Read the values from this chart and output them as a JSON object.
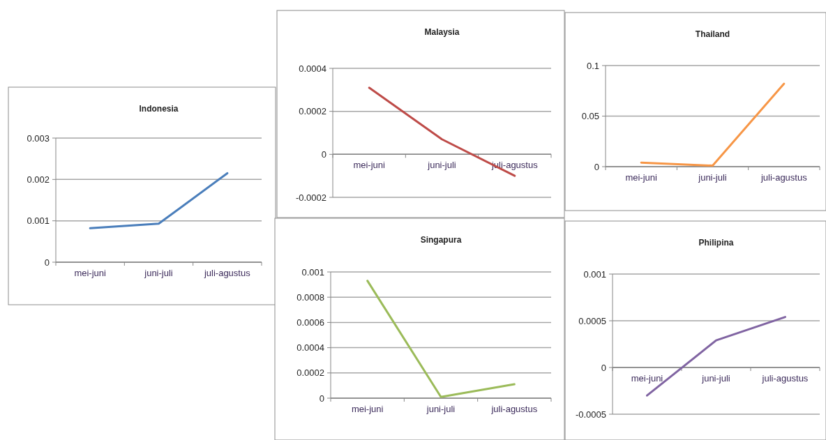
{
  "chart_data": [
    {
      "type": "line",
      "title": "Indonesia",
      "categories": [
        "mei-juni",
        "juni-juli",
        "juli-agustus"
      ],
      "series": [
        {
          "color": "#4a7ebb",
          "values": [
            0.00082,
            0.00093,
            0.00215
          ]
        }
      ],
      "ylim": [
        0,
        0.003
      ],
      "yticks": [
        0,
        0.001,
        0.002,
        0.003
      ],
      "grid": "y"
    },
    {
      "type": "line",
      "title": "Malaysia",
      "categories": [
        "mei-juni",
        "juni-juli",
        "juli-agustus"
      ],
      "series": [
        {
          "color": "#be4b48",
          "values": [
            0.00031,
            7e-05,
            -0.0001
          ]
        }
      ],
      "ylim": [
        -0.0002,
        0.0004
      ],
      "yticks": [
        -0.0002,
        0,
        0.0002,
        0.0004
      ],
      "grid": "y"
    },
    {
      "type": "line",
      "title": "Thailand",
      "categories": [
        "mei-juni",
        "juni-juli",
        "juli-agustus"
      ],
      "series": [
        {
          "color": "#f79646",
          "values": [
            0.004,
            0.001,
            0.082
          ]
        }
      ],
      "ylim": [
        0,
        0.1
      ],
      "yticks": [
        0,
        0.05,
        0.1
      ],
      "grid": "y"
    },
    {
      "type": "line",
      "title": "Singapura",
      "categories": [
        "mei-juni",
        "juni-juli",
        "juli-agustus"
      ],
      "series": [
        {
          "color": "#9bbb59",
          "values": [
            0.00093,
            1e-05,
            0.00011
          ]
        }
      ],
      "ylim": [
        0,
        0.001
      ],
      "yticks": [
        0,
        0.0002,
        0.0004,
        0.0006,
        0.0008,
        0.001
      ],
      "grid": "y"
    },
    {
      "type": "line",
      "title": "Philipina",
      "categories": [
        "mei-juni",
        "juni-juli",
        "juli-agustus"
      ],
      "series": [
        {
          "color": "#8064a2",
          "values": [
            -0.0003,
            0.00029,
            0.00054
          ]
        }
      ],
      "ylim": [
        -0.0005,
        0.001
      ],
      "yticks": [
        -0.0005,
        0,
        0.0005,
        0.001
      ],
      "grid": "y"
    }
  ]
}
